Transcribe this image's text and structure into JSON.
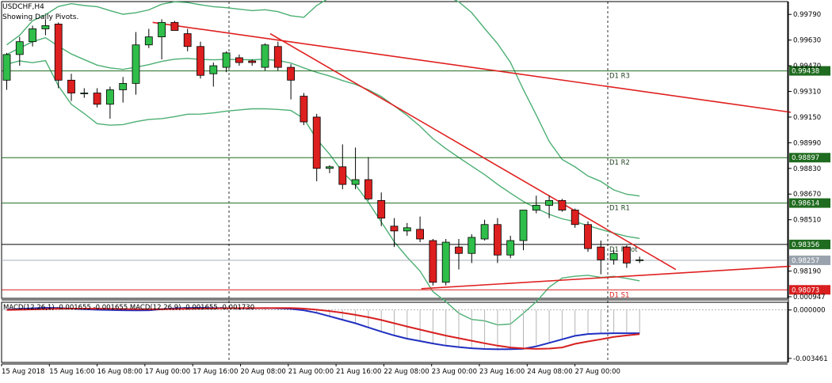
{
  "header": {
    "symbol_line": "USDCHF,H4",
    "indicator_line": "Showing Daily Pivots."
  },
  "colors": {
    "bull": "#2fbe4a",
    "bear": "#dd1f1f",
    "bands": "#4caf73",
    "trendline": "#e02020",
    "pivot_line": "#1f6b1f",
    "macd_line": "#1f2fbf",
    "signal_line": "#d82020",
    "histogram": "#b4b4b4",
    "price_tag": "#1f6b1f",
    "current_tag": "#9aa3ad",
    "s1_tag": "#d81e1e"
  },
  "macd_legend": "MACD(12,26,1) -0.001655 -0.001655 MACD(12,26,9) -0.001655 -0.001730",
  "chart_data": [
    {
      "type": "candlestick",
      "symbol": "USDCHF",
      "timeframe": "H4",
      "ylim": [
        0.9802,
        0.9987
      ],
      "y_ticks": [
        "0.99790",
        "0.99630",
        "0.99470",
        "0.99310",
        "0.99150",
        "0.98990",
        "0.98830",
        "0.98670",
        "0.98510",
        "0.98190"
      ],
      "x_tick_labels": [
        "15 Aug 2018",
        "15 Aug 16:00",
        "16 Aug 08:00",
        "17 Aug 00:00",
        "17 Aug 16:00",
        "20 Aug 08:00",
        "21 Aug 00:00",
        "21 Aug 16:00",
        "22 Aug 08:00",
        "23 Aug 00:00",
        "23 Aug 16:00",
        "24 Aug 08:00",
        "27 Aug 00:00"
      ],
      "candles": [
        [
          0.9938,
          0.9955,
          0.9932,
          0.9954
        ],
        [
          0.9954,
          0.9965,
          0.9947,
          0.9962
        ],
        [
          0.9962,
          0.9972,
          0.9959,
          0.997
        ],
        [
          0.997,
          0.9976,
          0.9966,
          0.9972
        ],
        [
          0.9973,
          0.9974,
          0.9933,
          0.9938
        ],
        [
          0.9938,
          0.9942,
          0.9925,
          0.993
        ],
        [
          0.993,
          0.9933,
          0.9927,
          0.993
        ],
        [
          0.993,
          0.9933,
          0.9921,
          0.9923
        ],
        [
          0.9923,
          0.9934,
          0.9914,
          0.9932
        ],
        [
          0.9932,
          0.994,
          0.9924,
          0.9936
        ],
        [
          0.9936,
          0.9968,
          0.9929,
          0.996
        ],
        [
          0.996,
          0.997,
          0.9958,
          0.9965
        ],
        [
          0.9965,
          0.9976,
          0.9951,
          0.9974
        ],
        [
          0.9974,
          0.9975,
          0.9969,
          0.9969
        ],
        [
          0.9967,
          0.997,
          0.9956,
          0.9959
        ],
        [
          0.9959,
          0.9962,
          0.9939,
          0.9941
        ],
        [
          0.9942,
          0.9949,
          0.9934,
          0.9947
        ],
        [
          0.9946,
          0.9956,
          0.9943,
          0.9955
        ],
        [
          0.9952,
          0.9954,
          0.9947,
          0.9949
        ],
        [
          0.995,
          0.9951,
          0.9947,
          0.9949
        ],
        [
          0.9946,
          0.9961,
          0.9944,
          0.996
        ],
        [
          0.9959,
          0.9962,
          0.9944,
          0.9946
        ],
        [
          0.9946,
          0.9948,
          0.9926,
          0.9938
        ],
        [
          0.9928,
          0.993,
          0.991,
          0.9912
        ],
        [
          0.9915,
          0.9917,
          0.9875,
          0.9883
        ],
        [
          0.9883,
          0.9885,
          0.988,
          0.9884
        ],
        [
          0.9884,
          0.9898,
          0.987,
          0.9873
        ],
        [
          0.9873,
          0.9896,
          0.987,
          0.9876
        ],
        [
          0.9876,
          0.989,
          0.9863,
          0.9864
        ],
        [
          0.9863,
          0.9868,
          0.9847,
          0.9852
        ],
        [
          0.9847,
          0.9852,
          0.9834,
          0.9844
        ],
        [
          0.9844,
          0.9849,
          0.9841,
          0.9846
        ],
        [
          0.9845,
          0.9853,
          0.9837,
          0.9839
        ],
        [
          0.9838,
          0.9839,
          0.981,
          0.9812
        ],
        [
          0.9812,
          0.9839,
          0.981,
          0.9837
        ],
        [
          0.9834,
          0.9839,
          0.982,
          0.983
        ],
        [
          0.983,
          0.9842,
          0.9824,
          0.984
        ],
        [
          0.9839,
          0.9851,
          0.9838,
          0.9848
        ],
        [
          0.9848,
          0.9852,
          0.9824,
          0.9829
        ],
        [
          0.9829,
          0.9841,
          0.9827,
          0.9838
        ],
        [
          0.9838,
          0.9856,
          0.9832,
          0.9857
        ],
        [
          0.9857,
          0.9866,
          0.9855,
          0.986
        ],
        [
          0.986,
          0.9866,
          0.9852,
          0.9863
        ],
        [
          0.9863,
          0.9864,
          0.9856,
          0.9857
        ],
        [
          0.9857,
          0.9858,
          0.9846,
          0.9848
        ],
        [
          0.9848,
          0.985,
          0.9831,
          0.9833
        ],
        [
          0.9834,
          0.9838,
          0.9817,
          0.9826
        ],
        [
          0.9826,
          0.9832,
          0.9823,
          0.983
        ],
        [
          0.9834,
          0.9835,
          0.9821,
          0.9824
        ],
        [
          0.9826,
          0.9828,
          0.9824,
          0.9826
        ]
      ],
      "pivot_levels": [
        {
          "label": "D1 R3",
          "value": 0.99438,
          "tag": "0.99438"
        },
        {
          "label": "D1 R2",
          "value": 0.98897,
          "tag": "0.98897"
        },
        {
          "label": "D1 R1",
          "value": 0.98614,
          "tag": "0.98614"
        },
        {
          "label": "D1 Pivot",
          "value": 0.98356,
          "tag": "0.98356"
        },
        {
          "label": "D1 S1",
          "value": 0.98073,
          "tag": "0.98073"
        }
      ],
      "current_price": {
        "value": 0.98257,
        "tag": "0.98257"
      }
    },
    {
      "type": "line",
      "title": "MACD(12,26,1) -0.001655 -0.001655 MACD(12,26,9) -0.001655 -0.001730",
      "ylim": [
        -0.00375,
        0.00055
      ],
      "y_ticks": [
        "0.000947",
        "0.000000",
        "-0.003461"
      ],
      "series": [
        {
          "name": "MACD(12,26,1)",
          "values": [
            2e-05,
            8e-05,
            0.00012,
            0.00016,
            0.00014,
            0.0001,
            5e-05,
            2e-05,
            0.0,
            -2e-05,
            -3e-05,
            -2e-05,
            5e-05,
            0.00012,
            0.00015,
            0.00016,
            0.00014,
            0.00013,
            0.00012,
            0.00012,
            0.00013,
            0.00012,
            8e-05,
            -2e-05,
            -0.0002,
            -0.00045,
            -0.0007,
            -0.00095,
            -0.00125,
            -0.00155,
            -0.00182,
            -0.00205,
            -0.00222,
            -0.0024,
            -0.00255,
            -0.00265,
            -0.00274,
            -0.00279,
            -0.00281,
            -0.0028,
            -0.00277,
            -0.0026,
            -0.00235,
            -0.0021,
            -0.00185,
            -0.00172,
            -0.00168,
            -0.00166,
            -0.00166,
            -0.00166
          ]
        },
        {
          "name": "MACD(12,26,9)",
          "values": [
            0.0,
            2e-05,
            4e-05,
            7e-05,
            9e-05,
            0.0001,
            0.0001,
            9e-05,
            8e-05,
            7e-05,
            6e-05,
            5e-05,
            6e-05,
            7e-05,
            8e-05,
            0.0001,
            0.00011,
            0.00012,
            0.00013,
            0.00013,
            0.00013,
            0.00014,
            0.00014,
            0.0001,
            2e-05,
            -8e-05,
            -0.0002,
            -0.00035,
            -0.00052,
            -0.00072,
            -0.00095,
            -0.00118,
            -0.0014,
            -0.00162,
            -0.00183,
            -0.00202,
            -0.0022,
            -0.00238,
            -0.00255,
            -0.00268,
            -0.00275,
            -0.00278,
            -0.00276,
            -0.00268,
            -0.00242,
            -0.00225,
            -0.0021,
            -0.00193,
            -0.00182,
            -0.00173
          ]
        }
      ]
    }
  ]
}
